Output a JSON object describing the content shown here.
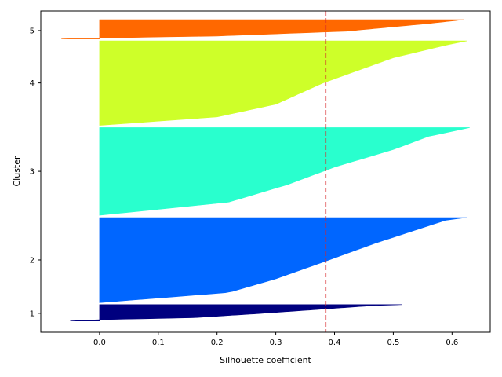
{
  "chart_data": {
    "type": "silhouette",
    "title": "",
    "xlabel": "Silhouette coefficient",
    "ylabel": "Cluster",
    "xlim": [
      -0.1,
      0.665
    ],
    "ylim": [
      0,
      1
    ],
    "x_ticks": [
      0.0,
      0.1,
      0.2,
      0.3,
      0.4,
      0.5,
      0.6
    ],
    "x_tick_labels": [
      "0.0",
      "0.1",
      "0.2",
      "0.3",
      "0.4",
      "0.5",
      "0.6"
    ],
    "y_tick_labels": [
      "1",
      "2",
      "3",
      "4",
      "5"
    ],
    "y_tick_fractions": [
      0.059,
      0.225,
      0.501,
      0.776,
      0.939
    ],
    "avg_silhouette": 0.385,
    "avg_line_color": "#d62728",
    "avg_line_style": "dashed",
    "grid": false,
    "legend": "none",
    "clusters": [
      {
        "label": "1",
        "color": "#00007f",
        "band_fraction": [
          0.035,
          0.086
        ],
        "profile": [
          [
            0,
            0.515
          ],
          [
            0.05,
            0.47
          ],
          [
            0.3,
            0.37
          ],
          [
            0.55,
            0.27
          ],
          [
            0.8,
            0.16
          ],
          [
            0.92,
            0.0
          ],
          [
            1.0,
            -0.05
          ]
        ]
      },
      {
        "label": "2",
        "color": "#0066ff",
        "band_fraction": [
          0.092,
          0.357
        ],
        "profile": [
          [
            0,
            0.625
          ],
          [
            0.03,
            0.59
          ],
          [
            0.12,
            0.55
          ],
          [
            0.3,
            0.47
          ],
          [
            0.5,
            0.39
          ],
          [
            0.72,
            0.3
          ],
          [
            0.88,
            0.22
          ],
          [
            1.0,
            0.0
          ]
        ]
      },
      {
        "label": "3",
        "color": "#29ffce",
        "band_fraction": [
          0.364,
          0.637
        ],
        "profile": [
          [
            0,
            0.63
          ],
          [
            0.1,
            0.56
          ],
          [
            0.25,
            0.5
          ],
          [
            0.45,
            0.4
          ],
          [
            0.65,
            0.32
          ],
          [
            0.85,
            0.22
          ],
          [
            1.0,
            0.0
          ]
        ]
      },
      {
        "label": "4",
        "color": "#ceff29",
        "band_fraction": [
          0.644,
          0.907
        ],
        "profile": [
          [
            0,
            0.625
          ],
          [
            0.05,
            0.59
          ],
          [
            0.2,
            0.5
          ],
          [
            0.5,
            0.38
          ],
          [
            0.75,
            0.3
          ],
          [
            0.9,
            0.2
          ],
          [
            1.0,
            0.0
          ]
        ]
      },
      {
        "label": "5",
        "color": "#ff6800",
        "band_fraction": [
          0.913,
          0.973
        ],
        "profile": [
          [
            0,
            0.62
          ],
          [
            0.2,
            0.56
          ],
          [
            0.6,
            0.42
          ],
          [
            0.85,
            0.2
          ],
          [
            0.95,
            0.0
          ],
          [
            1.0,
            -0.065
          ]
        ]
      }
    ]
  }
}
